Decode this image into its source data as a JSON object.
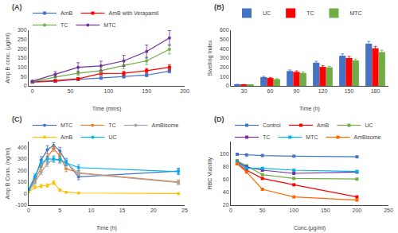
{
  "chart_data": [
    {
      "type": "line",
      "title": "(A)",
      "xlabel": "Time (mins)",
      "ylabel": "Amp B conc. (μg/ml)",
      "x": [
        0,
        30,
        60,
        90,
        120,
        150,
        180
      ],
      "xlim": [
        -5,
        200
      ],
      "xticks": [
        0,
        50,
        100,
        150,
        200
      ],
      "ylim": [
        0,
        300
      ],
      "yticks": [
        0,
        50,
        100,
        150,
        200,
        250,
        300
      ],
      "grid": false,
      "series": [
        {
          "name": "AmB",
          "color": "#4472C4",
          "marker": "square",
          "values": [
            20,
            25,
            35,
            42,
            50,
            58,
            80
          ],
          "errors": [
            2,
            5,
            5,
            6,
            7,
            8,
            10
          ]
        },
        {
          "name": "AmB with Verapamil",
          "color": "#FF0000",
          "marker": "square",
          "values": [
            22,
            28,
            38,
            67,
            68,
            82,
            100
          ],
          "errors": [
            2,
            6,
            7,
            10,
            10,
            12,
            14
          ]
        },
        {
          "name": "TC",
          "color": "#70AD47",
          "marker": "circle",
          "values": [
            22,
            48,
            68,
            82,
            110,
            135,
            197
          ],
          "errors": [
            3,
            12,
            12,
            15,
            18,
            20,
            25
          ]
        },
        {
          "name": "MTC",
          "color": "#7030A0",
          "marker": "circle",
          "values": [
            25,
            62,
            100,
            108,
            135,
            185,
            258
          ],
          "errors": [
            4,
            15,
            25,
            25,
            30,
            35,
            40
          ]
        }
      ]
    },
    {
      "type": "bar",
      "title": "(B)",
      "xlabel": "Time (h)",
      "ylabel": "Swelling Index",
      "categories": [
        "30",
        "60",
        "90",
        "120",
        "150",
        "180"
      ],
      "ylim": [
        0,
        600
      ],
      "yticks": [
        0,
        100,
        200,
        300,
        400,
        500,
        600
      ],
      "grid": false,
      "series": [
        {
          "name": "UC",
          "color": "#4472C4",
          "values": [
            15,
            95,
            160,
            250,
            325,
            455
          ],
          "errors": [
            3,
            8,
            12,
            15,
            20,
            25
          ]
        },
        {
          "name": "TC",
          "color": "#FF0000",
          "values": [
            12,
            85,
            150,
            205,
            300,
            405
          ],
          "errors": [
            3,
            7,
            12,
            15,
            18,
            22
          ]
        },
        {
          "name": "MTC",
          "color": "#70AD47",
          "values": [
            10,
            72,
            140,
            200,
            275,
            365
          ],
          "errors": [
            3,
            6,
            10,
            12,
            15,
            20
          ]
        }
      ]
    },
    {
      "type": "line",
      "title": "(C)",
      "xlabel": "Time (h)",
      "ylabel": "Amp B Cons. (ng/ml)",
      "x": [
        0,
        1,
        2,
        3,
        4,
        5,
        6,
        8,
        24
      ],
      "xlim": [
        0,
        25
      ],
      "xticks": [
        0,
        5,
        10,
        15,
        20,
        25
      ],
      "ylim": [
        -100,
        450
      ],
      "yticks": [
        -100,
        0,
        100,
        200,
        300,
        400
      ],
      "grid": false,
      "series": [
        {
          "name": "MTC",
          "color": "#4472C4",
          "marker": "circle",
          "values": [
            30,
            130,
            290,
            380,
            415,
            370,
            275,
            145,
            195
          ],
          "errors": [
            5,
            20,
            30,
            35,
            25,
            30,
            30,
            25,
            25
          ]
        },
        {
          "name": "TC",
          "color": "#ED7D31",
          "marker": "circle",
          "values": [
            25,
            110,
            230,
            315,
            390,
            325,
            215,
            180,
            100
          ],
          "errors": [
            5,
            18,
            25,
            30,
            25,
            25,
            25,
            20,
            20
          ]
        },
        {
          "name": "AmBisome",
          "color": "#A5A5A5",
          "marker": "circle",
          "values": [
            20,
            95,
            185,
            260,
            295,
            285,
            265,
            175,
            95
          ],
          "errors": [
            4,
            15,
            20,
            25,
            25,
            25,
            25,
            20,
            15
          ]
        },
        {
          "name": "AmB",
          "color": "#FFC000",
          "marker": "circle",
          "values": [
            15,
            55,
            65,
            70,
            95,
            30,
            12,
            5,
            0
          ],
          "errors": [
            3,
            12,
            15,
            15,
            18,
            10,
            5,
            3,
            2
          ]
        },
        {
          "name": "UC",
          "color": "#00B0F0",
          "marker": "circle",
          "values": [
            35,
            150,
            265,
            300,
            300,
            295,
            265,
            225,
            190
          ],
          "errors": [
            5,
            20,
            25,
            25,
            25,
            25,
            25,
            25,
            25
          ]
        }
      ]
    },
    {
      "type": "line",
      "title": "(D)",
      "xlabel": "Conc.(μg/ml)",
      "ylabel": "RBC Viability",
      "x": [
        10,
        25,
        50,
        100,
        200
      ],
      "xlim": [
        0,
        250
      ],
      "xticks": [
        0,
        50,
        100,
        150,
        200,
        250
      ],
      "ylim": [
        20,
        120
      ],
      "yticks": [
        20,
        40,
        60,
        80,
        100
      ],
      "grid": false,
      "series": [
        {
          "name": "Control",
          "color": "#4472C4",
          "marker": "square",
          "values": [
            100,
            99,
            98,
            97,
            96
          ]
        },
        {
          "name": "AmB",
          "color": "#FF0000",
          "marker": "square",
          "values": [
            85,
            75,
            62,
            52,
            33
          ]
        },
        {
          "name": "UC",
          "color": "#70AD47",
          "marker": "square",
          "values": [
            90,
            82,
            68,
            62,
            61
          ]
        },
        {
          "name": "TC",
          "color": "#7030A0",
          "marker": "square",
          "values": [
            88,
            80,
            75,
            70,
            72
          ]
        },
        {
          "name": "MTC",
          "color": "#00B0F0",
          "marker": "square",
          "values": [
            87,
            78,
            78,
            75,
            73
          ]
        },
        {
          "name": "AmBisome",
          "color": "#FF6600",
          "marker": "square",
          "values": [
            85,
            72,
            45,
            33,
            28
          ]
        }
      ]
    }
  ]
}
